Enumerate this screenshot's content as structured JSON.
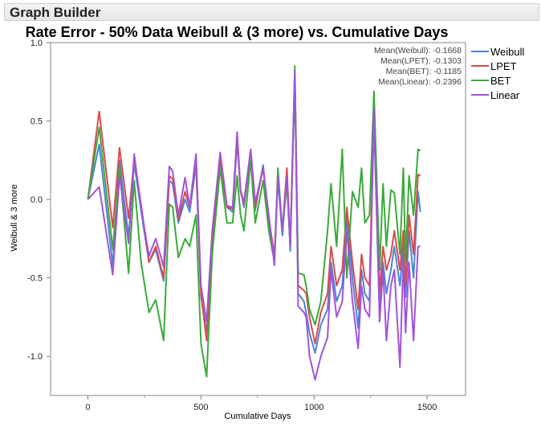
{
  "window": {
    "title": "Graph Builder"
  },
  "chart_data": {
    "type": "line",
    "title": "Rate Error - 50% Data Weibull & (3 more) vs. Cumulative Days",
    "xlabel": "Cumulative Days",
    "ylabel": "Weibull & 3 more",
    "xlim": [
      -165,
      1670
    ],
    "ylim": [
      -1.25,
      1.0
    ],
    "xticks": [
      0,
      500,
      1000,
      1500
    ],
    "yticks": [
      -1.0,
      -0.5,
      0.0,
      0.5,
      1.0
    ],
    "ytick_labels": [
      "-1.0",
      "-0.5",
      "0.0",
      "0.5",
      "1.0"
    ],
    "grid": false,
    "legend": "right",
    "means": [
      "Mean(Weibull): -0.1668",
      "Mean(LPET): -0.1303",
      "Mean(BET): -0.1185",
      "Mean(Linear): -0.2396"
    ],
    "x": [
      0,
      50,
      110,
      140,
      180,
      205,
      235,
      270,
      300,
      335,
      360,
      375,
      400,
      430,
      450,
      478,
      500,
      525,
      550,
      585,
      615,
      640,
      660,
      675,
      690,
      720,
      740,
      775,
      800,
      825,
      840,
      860,
      880,
      895,
      915,
      930,
      955,
      965,
      980,
      1005,
      1030,
      1060,
      1075,
      1100,
      1125,
      1145,
      1170,
      1195,
      1210,
      1225,
      1245,
      1265,
      1290,
      1305,
      1320,
      1340,
      1355,
      1380,
      1395,
      1405,
      1420,
      1440,
      1460,
      1470
    ],
    "series": [
      {
        "name": "Weibull",
        "color": "#4a86d8",
        "values": [
          0.0,
          0.35,
          -0.42,
          0.25,
          -0.24,
          0.23,
          -0.07,
          -0.4,
          -0.32,
          -0.52,
          0.12,
          0.1,
          -0.15,
          0.0,
          -0.08,
          0.22,
          -0.62,
          -0.85,
          -0.3,
          0.24,
          -0.05,
          -0.08,
          0.36,
          0.06,
          -0.05,
          0.3,
          -0.07,
          0.22,
          -0.15,
          -0.38,
          0.13,
          -0.23,
          0.18,
          -0.33,
          0.78,
          -0.6,
          -0.65,
          -0.72,
          -0.85,
          -0.98,
          -0.8,
          -0.7,
          -0.4,
          -0.65,
          -0.55,
          -0.12,
          -0.5,
          -0.82,
          -0.45,
          -0.6,
          -0.65,
          0.5,
          -0.72,
          -0.4,
          -0.6,
          -0.45,
          -0.3,
          -0.55,
          -0.3,
          -0.62,
          -0.2,
          -0.5,
          0.05,
          -0.08
        ]
      },
      {
        "name": "LPET",
        "color": "#d94b4b",
        "values": [
          0.0,
          0.56,
          -0.18,
          0.33,
          -0.12,
          0.26,
          -0.03,
          -0.4,
          -0.3,
          -0.5,
          0.15,
          0.13,
          -0.13,
          0.05,
          -0.05,
          0.26,
          -0.6,
          -0.9,
          -0.25,
          0.26,
          -0.05,
          -0.06,
          0.4,
          0.05,
          -0.03,
          0.3,
          -0.05,
          0.2,
          -0.12,
          -0.36,
          0.16,
          -0.2,
          0.2,
          -0.3,
          0.8,
          -0.55,
          -0.58,
          -0.6,
          -0.75,
          -0.92,
          -0.72,
          -0.6,
          -0.3,
          -0.55,
          -0.45,
          -0.05,
          -0.4,
          -0.7,
          -0.35,
          -0.5,
          -0.55,
          0.55,
          -0.6,
          -0.3,
          -0.45,
          -0.35,
          -0.2,
          -0.45,
          -0.2,
          -0.55,
          -0.1,
          -0.35,
          0.16,
          0.15
        ]
      },
      {
        "name": "BET",
        "color": "#3aaa3a",
        "values": [
          0.0,
          0.46,
          -0.32,
          0.21,
          -0.47,
          0.12,
          -0.4,
          -0.72,
          -0.64,
          -0.9,
          -0.03,
          -0.05,
          -0.37,
          -0.25,
          -0.3,
          -0.1,
          -0.92,
          -1.13,
          -0.35,
          0.2,
          -0.15,
          -0.15,
          0.15,
          -0.1,
          -0.2,
          0.25,
          -0.15,
          0.12,
          -0.2,
          -0.4,
          0.2,
          -0.2,
          0.1,
          -0.3,
          0.85,
          -0.47,
          -0.48,
          -0.55,
          -0.7,
          -0.8,
          -0.65,
          -0.2,
          0.1,
          -0.3,
          0.32,
          -0.5,
          0.05,
          -0.05,
          0.2,
          -0.15,
          -0.1,
          0.69,
          -0.45,
          0.1,
          -0.3,
          0.06,
          0.04,
          -0.35,
          0.2,
          -0.4,
          0.15,
          -0.1,
          0.32,
          0.31
        ]
      },
      {
        "name": "Linear",
        "color": "#a154d9",
        "values": [
          0.0,
          0.08,
          -0.48,
          0.15,
          -0.28,
          0.29,
          -0.05,
          -0.36,
          -0.25,
          -0.43,
          0.21,
          0.18,
          -0.1,
          0.14,
          -0.05,
          0.29,
          -0.55,
          -0.78,
          -0.2,
          0.3,
          -0.04,
          -0.05,
          0.43,
          0.06,
          -0.02,
          0.32,
          -0.02,
          0.2,
          -0.1,
          -0.42,
          0.15,
          -0.2,
          0.14,
          -0.3,
          0.82,
          -0.68,
          -0.72,
          -0.75,
          -1.0,
          -1.15,
          -1.0,
          -0.88,
          -0.45,
          -0.75,
          -0.65,
          -0.2,
          -0.65,
          -0.95,
          -0.55,
          -0.7,
          -0.75,
          0.58,
          -0.78,
          -0.45,
          -0.9,
          -0.55,
          -0.45,
          -1.07,
          -0.38,
          -0.85,
          -0.4,
          -0.9,
          -0.3,
          -0.3
        ]
      }
    ]
  }
}
